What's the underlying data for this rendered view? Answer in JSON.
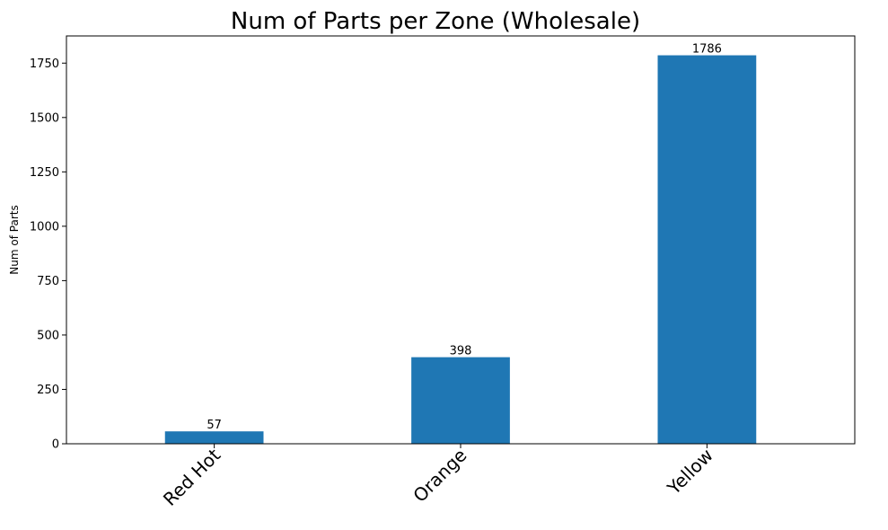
{
  "chart_data": {
    "type": "bar",
    "title": "Num of Parts per Zone (Wholesale)",
    "xlabel": "",
    "ylabel": "Num of Parts",
    "categories": [
      "Red Hot",
      "Orange",
      "Yellow"
    ],
    "values": [
      57,
      398,
      1786
    ],
    "data_labels": [
      "57",
      "398",
      "1786"
    ],
    "ylim": [
      0,
      1875
    ],
    "yticks": [
      0,
      250,
      500,
      750,
      1000,
      1250,
      1500,
      1750
    ],
    "ytick_labels": [
      "0",
      "250",
      "500",
      "750",
      "1000",
      "1250",
      "1500",
      "1750"
    ],
    "bar_color": "#1f77b4",
    "grid": false,
    "legend": "none"
  }
}
